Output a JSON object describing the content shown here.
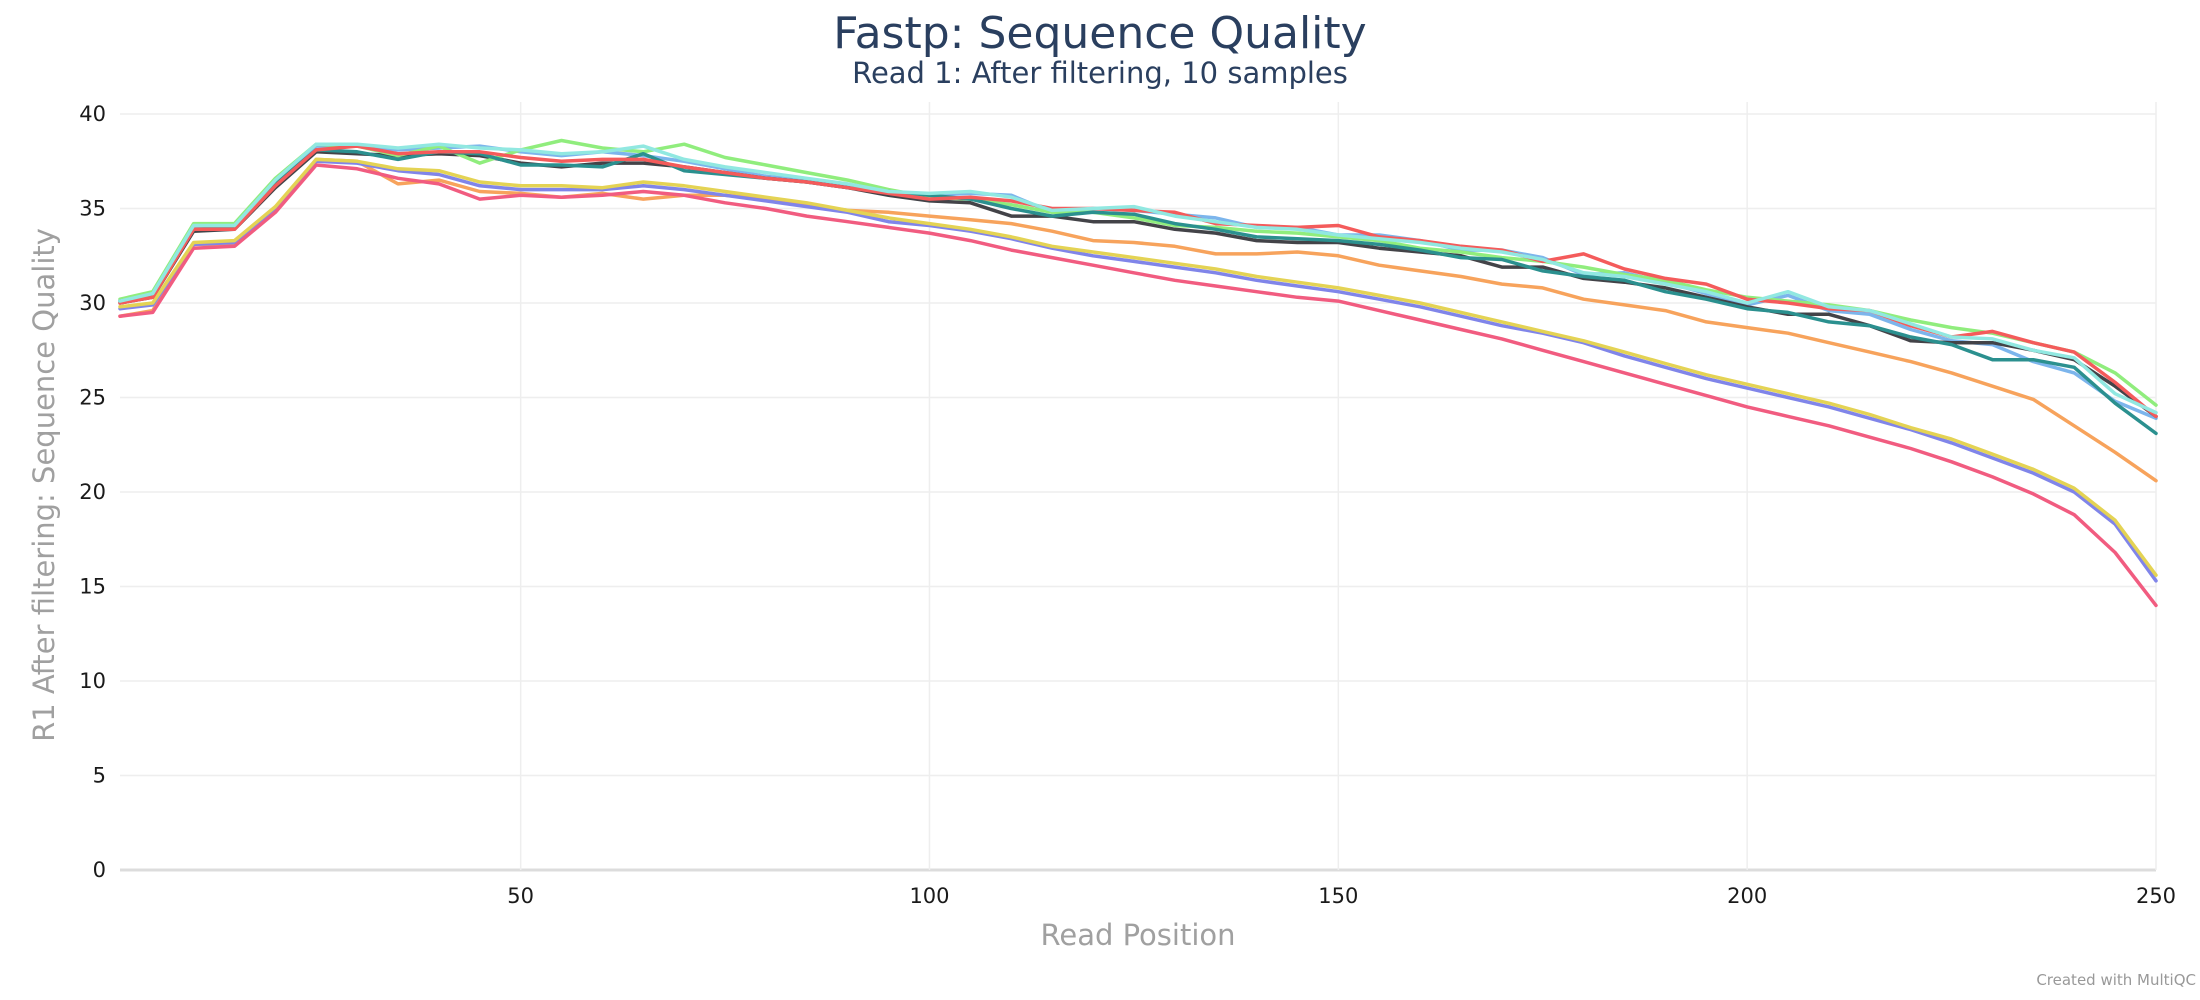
{
  "chart_data": {
    "type": "line",
    "title": "Fastp: Sequence Quality",
    "subtitle": "Read 1: After filtering, 10 samples",
    "xlabel": "Read Position",
    "ylabel": "R1 After filtering: Sequence Quality",
    "xlim": [
      1,
      250
    ],
    "ylim": [
      0,
      40
    ],
    "xticks": [
      50,
      100,
      150,
      200,
      250
    ],
    "yticks": [
      0,
      5,
      10,
      15,
      20,
      25,
      30,
      35,
      40
    ],
    "grid": true,
    "legend": "none",
    "credit": "Created with MultiQC",
    "x": [
      1,
      5,
      10,
      15,
      20,
      25,
      30,
      35,
      40,
      45,
      50,
      55,
      60,
      65,
      70,
      75,
      80,
      85,
      90,
      95,
      100,
      105,
      110,
      115,
      120,
      125,
      130,
      135,
      140,
      145,
      150,
      155,
      160,
      165,
      170,
      175,
      180,
      185,
      190,
      195,
      200,
      205,
      210,
      215,
      220,
      225,
      230,
      235,
      240,
      245,
      250
    ],
    "series": [
      {
        "color": "#7cb5ec",
        "values": [
          30.1,
          30.4,
          34.0,
          34.0,
          36.4,
          38.3,
          38.3,
          38.1,
          38.2,
          38.3,
          38.0,
          37.8,
          38.0,
          37.8,
          37.5,
          37.1,
          36.7,
          36.5,
          36.2,
          35.9,
          35.7,
          35.8,
          35.7,
          34.8,
          35.0,
          34.9,
          34.7,
          34.5,
          34.0,
          34.0,
          33.6,
          33.6,
          33.3,
          32.8,
          32.8,
          32.4,
          31.5,
          31.6,
          31.1,
          30.5,
          29.9,
          30.4,
          29.6,
          29.4,
          28.6,
          28.0,
          27.8,
          26.9,
          26.3,
          24.8,
          23.9
        ]
      },
      {
        "color": "#434348",
        "values": [
          30.0,
          30.3,
          33.8,
          33.9,
          36.1,
          38.0,
          37.9,
          37.8,
          37.9,
          37.8,
          37.4,
          37.2,
          37.4,
          37.4,
          37.2,
          36.9,
          36.6,
          36.4,
          36.1,
          35.7,
          35.4,
          35.3,
          34.6,
          34.6,
          34.3,
          34.3,
          33.9,
          33.7,
          33.3,
          33.2,
          33.2,
          32.9,
          32.7,
          32.5,
          31.9,
          31.9,
          31.3,
          31.1,
          30.8,
          30.3,
          29.8,
          29.4,
          29.4,
          28.8,
          28.0,
          27.9,
          27.9,
          27.5,
          27.0,
          25.6,
          24.0
        ]
      },
      {
        "color": "#90ed7d",
        "values": [
          30.2,
          30.6,
          34.2,
          34.2,
          36.6,
          38.4,
          38.3,
          37.8,
          38.3,
          37.4,
          38.1,
          38.6,
          38.2,
          38.0,
          38.4,
          37.7,
          37.3,
          36.9,
          36.5,
          36.0,
          35.6,
          35.5,
          35.2,
          34.8,
          34.8,
          34.5,
          34.1,
          34.0,
          33.8,
          33.7,
          33.5,
          33.3,
          32.9,
          32.7,
          32.4,
          32.2,
          31.9,
          31.5,
          31.2,
          30.7,
          30.3,
          30.1,
          29.9,
          29.6,
          29.1,
          28.7,
          28.4,
          27.9,
          27.4,
          26.3,
          24.6
        ]
      },
      {
        "color": "#f7a35c",
        "values": [
          29.3,
          29.6,
          33.1,
          33.1,
          35.0,
          37.6,
          37.5,
          36.3,
          36.5,
          35.9,
          35.8,
          35.6,
          35.8,
          35.5,
          35.7,
          35.7,
          35.5,
          35.2,
          34.9,
          34.8,
          34.6,
          34.4,
          34.2,
          33.8,
          33.3,
          33.2,
          33.0,
          32.6,
          32.6,
          32.7,
          32.5,
          32.0,
          31.7,
          31.4,
          31.0,
          30.8,
          30.2,
          29.9,
          29.6,
          29.0,
          28.7,
          28.4,
          27.9,
          27.4,
          26.9,
          26.3,
          25.6,
          24.9,
          23.5,
          22.1,
          20.6
        ]
      },
      {
        "color": "#8085e9",
        "values": [
          29.7,
          29.9,
          33.1,
          33.2,
          35.0,
          37.5,
          37.4,
          37.0,
          36.8,
          36.2,
          36.0,
          36.0,
          36.0,
          36.2,
          36.0,
          35.7,
          35.4,
          35.1,
          34.8,
          34.3,
          34.1,
          33.8,
          33.4,
          32.9,
          32.5,
          32.2,
          31.9,
          31.6,
          31.2,
          30.9,
          30.6,
          30.2,
          29.8,
          29.3,
          28.8,
          28.4,
          27.9,
          27.2,
          26.6,
          26.0,
          25.5,
          25.0,
          24.5,
          23.9,
          23.3,
          22.6,
          21.8,
          21.0,
          20.0,
          18.3,
          15.3
        ]
      },
      {
        "color": "#f15c80",
        "values": [
          29.3,
          29.5,
          32.9,
          33.0,
          34.8,
          37.3,
          37.1,
          36.6,
          36.3,
          35.5,
          35.7,
          35.6,
          35.7,
          35.9,
          35.7,
          35.3,
          35.0,
          34.6,
          34.3,
          34.0,
          33.7,
          33.3,
          32.8,
          32.4,
          32.0,
          31.6,
          31.2,
          30.9,
          30.6,
          30.3,
          30.1,
          29.6,
          29.1,
          28.6,
          28.1,
          27.5,
          26.9,
          26.3,
          25.7,
          25.1,
          24.5,
          24.0,
          23.5,
          22.9,
          22.3,
          21.6,
          20.8,
          19.9,
          18.8,
          16.8,
          14.0
        ]
      },
      {
        "color": "#e4d354",
        "values": [
          29.8,
          30.0,
          33.2,
          33.3,
          35.1,
          37.6,
          37.5,
          37.1,
          37.0,
          36.4,
          36.2,
          36.2,
          36.1,
          36.4,
          36.2,
          35.9,
          35.6,
          35.3,
          34.9,
          34.5,
          34.2,
          33.9,
          33.5,
          33.0,
          32.7,
          32.4,
          32.1,
          31.8,
          31.4,
          31.1,
          30.8,
          30.4,
          30.0,
          29.5,
          29.0,
          28.5,
          28.0,
          27.4,
          26.8,
          26.2,
          25.7,
          25.2,
          24.7,
          24.1,
          23.4,
          22.8,
          22.0,
          21.2,
          20.2,
          18.5,
          15.6
        ]
      },
      {
        "color": "#2b908f",
        "values": [
          30.1,
          30.4,
          33.9,
          34.0,
          36.3,
          38.1,
          38.0,
          37.6,
          38.0,
          37.9,
          37.3,
          37.3,
          37.2,
          37.9,
          37.0,
          36.8,
          36.6,
          36.4,
          36.1,
          35.9,
          35.7,
          35.5,
          35.0,
          34.6,
          34.8,
          34.7,
          34.2,
          33.9,
          33.5,
          33.4,
          33.3,
          33.1,
          32.8,
          32.4,
          32.3,
          31.7,
          31.4,
          31.2,
          30.6,
          30.2,
          29.7,
          29.5,
          29.0,
          28.8,
          28.2,
          27.8,
          27.0,
          27.0,
          26.6,
          24.7,
          23.1
        ]
      },
      {
        "color": "#f45b5b",
        "values": [
          30.0,
          30.3,
          33.9,
          33.9,
          36.2,
          38.1,
          38.3,
          37.9,
          38.0,
          38.0,
          37.7,
          37.5,
          37.6,
          37.6,
          37.2,
          36.9,
          36.6,
          36.4,
          36.1,
          35.8,
          35.5,
          35.6,
          35.4,
          35.0,
          35.0,
          34.9,
          34.8,
          34.2,
          34.1,
          34.0,
          34.1,
          33.5,
          33.3,
          33.0,
          32.8,
          32.2,
          32.6,
          31.8,
          31.3,
          31.0,
          30.2,
          30.0,
          29.7,
          29.6,
          28.8,
          28.2,
          28.5,
          27.9,
          27.4,
          25.8,
          24.0
        ]
      },
      {
        "color": "#91e8e1",
        "values": [
          30.1,
          30.5,
          34.1,
          34.1,
          36.5,
          38.4,
          38.4,
          38.2,
          38.4,
          38.2,
          38.1,
          37.9,
          38.0,
          38.3,
          37.6,
          37.2,
          36.9,
          36.6,
          36.3,
          35.9,
          35.8,
          35.9,
          35.6,
          34.9,
          35.0,
          35.1,
          34.6,
          34.3,
          34.0,
          33.9,
          33.6,
          33.4,
          33.2,
          32.9,
          32.7,
          32.3,
          31.6,
          31.4,
          31.0,
          30.6,
          30.0,
          30.6,
          29.8,
          29.6,
          28.9,
          28.2,
          28.1,
          27.5,
          27.1,
          25.2,
          24.2
        ]
      }
    ]
  }
}
